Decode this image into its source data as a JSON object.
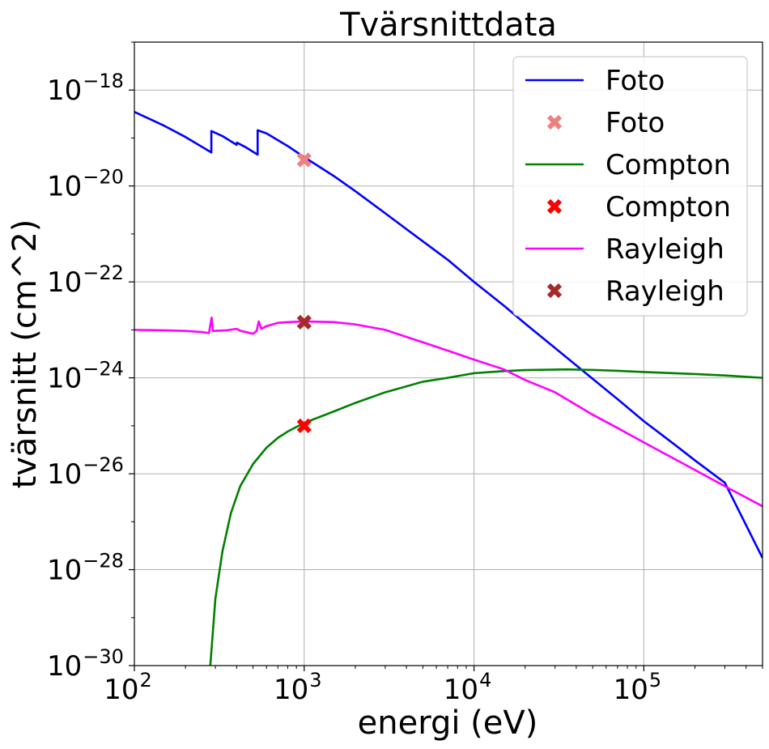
{
  "chart_data": {
    "type": "line",
    "title": "Tvärsnittdata",
    "xlabel": "energi (eV)",
    "ylabel": "tvärsnitt (cm^2)",
    "xscale": "log",
    "yscale": "log",
    "xlim": [
      100,
      500000
    ],
    "ylim": [
      1e-30,
      1e-17
    ],
    "grid": true,
    "legend_position": "top-right",
    "x_ticks": [
      {
        "value": 100,
        "base": "10",
        "exp": "2"
      },
      {
        "value": 1000,
        "base": "10",
        "exp": "3"
      },
      {
        "value": 10000,
        "base": "10",
        "exp": "4"
      },
      {
        "value": 100000,
        "base": "10",
        "exp": "5"
      }
    ],
    "y_ticks": [
      {
        "value": 1e-30,
        "base": "10",
        "exp": "−30"
      },
      {
        "value": 1e-28,
        "base": "10",
        "exp": "−28"
      },
      {
        "value": 1e-26,
        "base": "10",
        "exp": "−26"
      },
      {
        "value": 1e-24,
        "base": "10",
        "exp": "−24"
      },
      {
        "value": 1e-22,
        "base": "10",
        "exp": "−22"
      },
      {
        "value": 1e-20,
        "base": "10",
        "exp": "−20"
      },
      {
        "value": 1e-18,
        "base": "10",
        "exp": "−18"
      }
    ],
    "series": [
      {
        "name": "Foto",
        "kind": "line",
        "color": "#0000ff",
        "points": [
          [
            100,
            3.5e-19
          ],
          [
            150,
            1.8e-19
          ],
          [
            200,
            1.05e-19
          ],
          [
            284,
            5e-20
          ],
          [
            284,
            1.4e-19
          ],
          [
            330,
            1.1e-19
          ],
          [
            400,
            7.2e-20
          ],
          [
            402,
            8e-20
          ],
          [
            450,
            6.5e-20
          ],
          [
            532,
            4.5e-20
          ],
          [
            532,
            1.45e-19
          ],
          [
            600,
            1.25e-19
          ],
          [
            700,
            9e-20
          ],
          [
            800,
            6.8e-20
          ],
          [
            1000,
            4e-20
          ],
          [
            1500,
            1.6e-20
          ],
          [
            2000,
            7.8e-21
          ],
          [
            3000,
            2.7e-21
          ],
          [
            5000,
            7e-22
          ],
          [
            7000,
            2.9e-22
          ],
          [
            10000,
            1e-22
          ],
          [
            15000,
            3.2e-23
          ],
          [
            20000,
            1.35e-23
          ],
          [
            30000,
            4.2e-24
          ],
          [
            50000,
            9.5e-25
          ],
          [
            70000,
            3.6e-25
          ],
          [
            100000,
            1.25e-25
          ],
          [
            150000,
            4.2e-26
          ],
          [
            200000,
            1.9e-26
          ],
          [
            300000,
            6.5e-27
          ],
          [
            500000,
            1.75e-28
          ]
        ]
      },
      {
        "name": "Foto",
        "kind": "marker",
        "color": "#f08080",
        "points": [
          [
            1000,
            3.5e-20
          ]
        ]
      },
      {
        "name": "Compton",
        "kind": "line",
        "color": "#008000",
        "points": [
          [
            280,
            1e-30
          ],
          [
            300,
            2.5e-29
          ],
          [
            330,
            2.4e-28
          ],
          [
            370,
            1.5e-27
          ],
          [
            420,
            5.5e-27
          ],
          [
            500,
            1.6e-26
          ],
          [
            600,
            3.5e-26
          ],
          [
            700,
            5.6e-26
          ],
          [
            800,
            7.6e-26
          ],
          [
            1000,
            1.15e-25
          ],
          [
            1500,
            2e-25
          ],
          [
            2000,
            3e-25
          ],
          [
            3000,
            5e-25
          ],
          [
            5000,
            8.3e-25
          ],
          [
            7000,
            1e-24
          ],
          [
            10000,
            1.25e-24
          ],
          [
            15000,
            1.38e-24
          ],
          [
            20000,
            1.45e-24
          ],
          [
            35000,
            1.5e-24
          ],
          [
            50000,
            1.46e-24
          ],
          [
            70000,
            1.4e-24
          ],
          [
            100000,
            1.32e-24
          ],
          [
            200000,
            1.2e-24
          ],
          [
            300000,
            1.12e-24
          ],
          [
            500000,
            1e-24
          ]
        ]
      },
      {
        "name": "Compton",
        "kind": "marker",
        "color": "#ff0000",
        "points": [
          [
            1000,
            1e-25
          ]
        ]
      },
      {
        "name": "Rayleigh",
        "kind": "line",
        "color": "#ff00ff",
        "points": [
          [
            100,
            1e-23
          ],
          [
            150,
            9.8e-24
          ],
          [
            200,
            9.5e-24
          ],
          [
            250,
            9e-24
          ],
          [
            275,
            8.6e-24
          ],
          [
            285,
            1.8e-23
          ],
          [
            290,
            9.5e-24
          ],
          [
            350,
            9.8e-24
          ],
          [
            400,
            1.05e-23
          ],
          [
            420,
            9.6e-24
          ],
          [
            500,
            8.3e-24
          ],
          [
            525,
            9.5e-24
          ],
          [
            540,
            1.5e-23
          ],
          [
            560,
            1.05e-23
          ],
          [
            600,
            1.2e-23
          ],
          [
            700,
            1.4e-23
          ],
          [
            800,
            1.45e-23
          ],
          [
            1000,
            1.5e-23
          ],
          [
            1500,
            1.45e-23
          ],
          [
            2000,
            1.3e-23
          ],
          [
            3000,
            1e-23
          ],
          [
            5000,
            5.5e-24
          ],
          [
            7000,
            3.7e-24
          ],
          [
            10000,
            2.4e-24
          ],
          [
            15000,
            1.5e-24
          ],
          [
            20000,
            9e-25
          ],
          [
            30000,
            5e-25
          ],
          [
            50000,
            1.7e-25
          ],
          [
            70000,
            9e-26
          ],
          [
            100000,
            4.5e-26
          ],
          [
            200000,
            1.2e-26
          ],
          [
            300000,
            5.5e-27
          ],
          [
            500000,
            2.1e-27
          ]
        ]
      },
      {
        "name": "Rayleigh",
        "kind": "marker",
        "color": "#a52a2a",
        "points": [
          [
            1000,
            1.45e-23
          ]
        ]
      }
    ]
  }
}
